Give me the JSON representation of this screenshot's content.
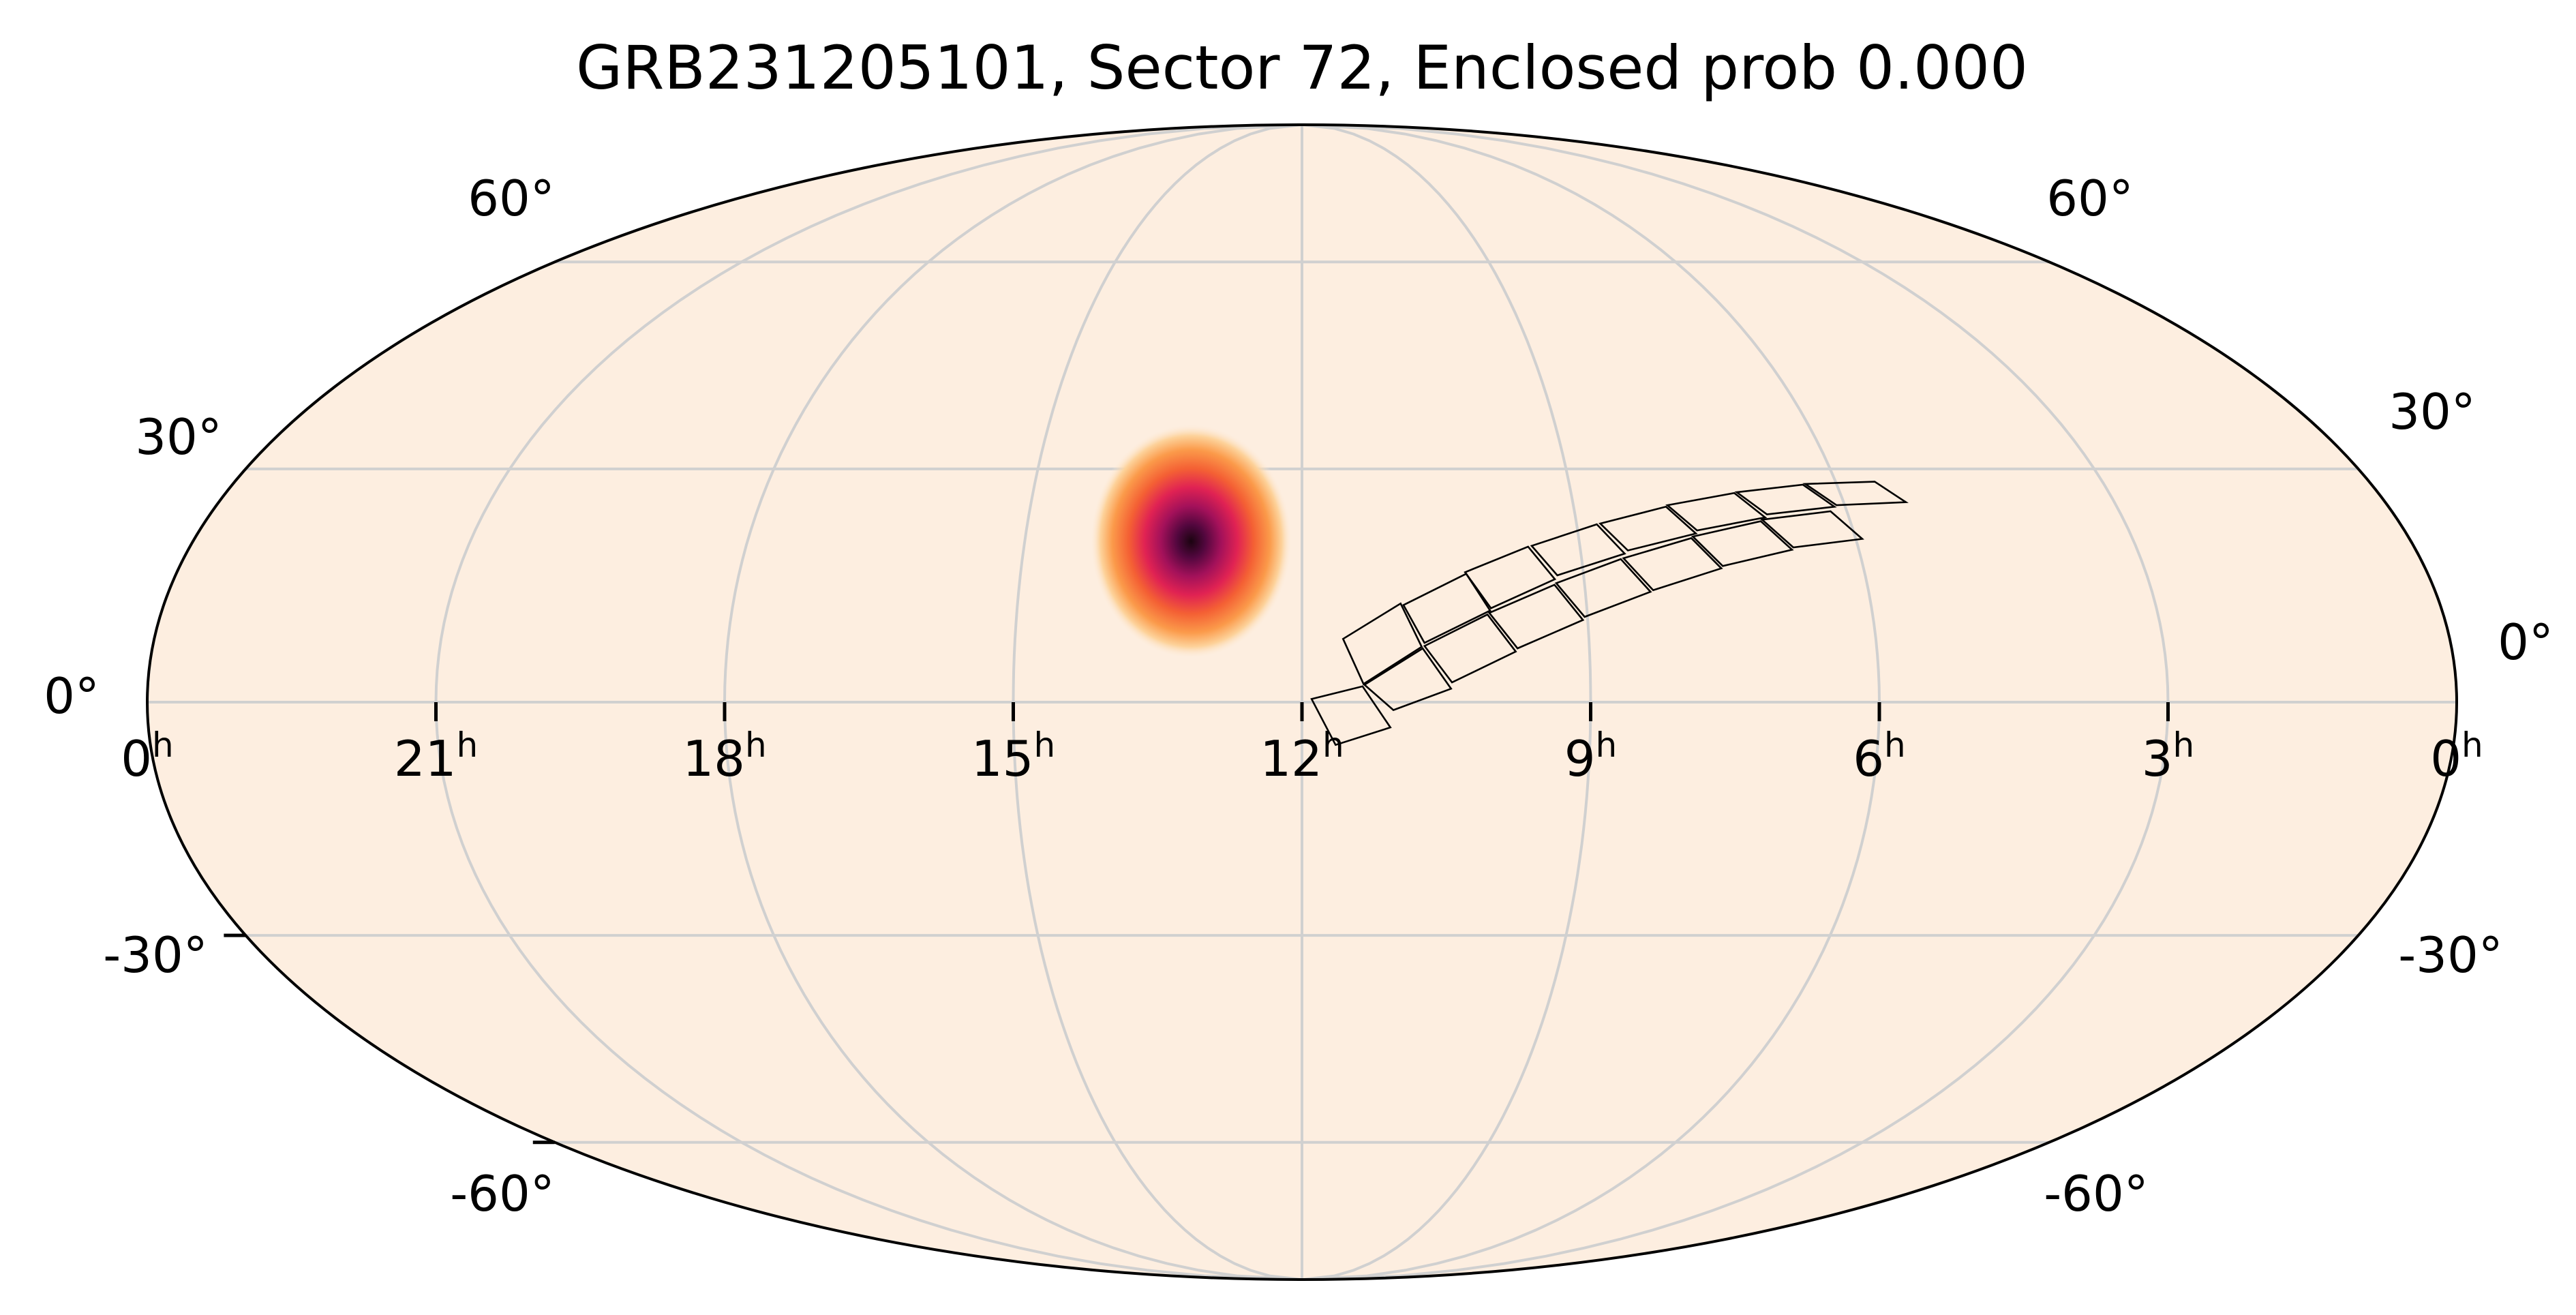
{
  "title": "GRB231205101, Sector 72, Enclosed prob 0.000",
  "colors": {
    "background": "#fdeee0",
    "grid": "#d0d0d0",
    "outline": "#000000",
    "probability_colormap": [
      "#fdeee0",
      "#fdd29a",
      "#fb9a4a",
      "#f46034",
      "#e02253",
      "#a3115a",
      "#52073e",
      "#1b0410"
    ]
  },
  "map": {
    "projection": "mollweide",
    "ra_direction": "decreasing-left-to-right",
    "grid": true,
    "ra_tick_labels": [
      {
        "value": "0",
        "unit": "h"
      },
      {
        "value": "21",
        "unit": "h"
      },
      {
        "value": "18",
        "unit": "h"
      },
      {
        "value": "15",
        "unit": "h"
      },
      {
        "value": "12",
        "unit": "h"
      },
      {
        "value": "9",
        "unit": "h"
      },
      {
        "value": "6",
        "unit": "h"
      },
      {
        "value": "3",
        "unit": "h"
      },
      {
        "value": "0",
        "unit": "h"
      }
    ],
    "dec_tick_labels_left": [
      "60°",
      "30°",
      "0°",
      "-30°",
      "-60°"
    ],
    "dec_tick_labels_right": [
      "60°",
      "30°",
      "0°",
      "-30°",
      "-60°"
    ]
  },
  "probability_blob": {
    "ra_hours": 13.2,
    "dec_deg": 20.5,
    "sigma_deg": 3.2
  },
  "sector_footprint": {
    "ccd_row_upper": [
      [
        [
          11.57,
          8.0
        ],
        [
          10.96,
          12.5
        ],
        [
          10.75,
          7.0
        ],
        [
          11.36,
          2.3
        ]
      ],
      [
        [
          10.93,
          12.3
        ],
        [
          10.25,
          16.3
        ],
        [
          10.02,
          11.6
        ],
        [
          10.72,
          7.5
        ]
      ],
      [
        [
          10.26,
          16.5
        ],
        [
          9.56,
          19.8
        ],
        [
          9.31,
          15.6
        ],
        [
          10.01,
          11.9
        ]
      ],
      [
        [
          9.52,
          19.9
        ],
        [
          8.78,
          22.7
        ],
        [
          8.53,
          18.9
        ],
        [
          9.28,
          16.1
        ]
      ],
      [
        [
          8.74,
          22.8
        ],
        [
          7.98,
          25.0
        ],
        [
          7.72,
          21.5
        ],
        [
          8.49,
          19.3
        ]
      ],
      [
        [
          7.96,
          25.2
        ],
        [
          7.18,
          26.8
        ],
        [
          6.92,
          23.6
        ],
        [
          7.7,
          21.9
        ]
      ],
      [
        [
          7.15,
          26.9
        ],
        [
          6.38,
          27.9
        ],
        [
          6.12,
          25.0
        ],
        [
          6.89,
          24.0
        ]
      ],
      [
        [
          6.35,
          28.0
        ],
        [
          5.56,
          28.3
        ],
        [
          5.31,
          25.6
        ],
        [
          6.09,
          25.2
        ]
      ]
    ],
    "ccd_row_lower": [
      [
        [
          11.9,
          0.4
        ],
        [
          11.37,
          2.0
        ],
        [
          11.08,
          -3.2
        ],
        [
          11.65,
          -5.4
        ]
      ],
      [
        [
          11.35,
          2.2
        ],
        [
          10.74,
          6.8
        ],
        [
          10.45,
          1.7
        ],
        [
          11.05,
          -1.0
        ]
      ],
      [
        [
          10.72,
          7.1
        ],
        [
          10.05,
          11.1
        ],
        [
          9.77,
          6.4
        ],
        [
          10.44,
          2.5
        ]
      ],
      [
        [
          10.03,
          11.3
        ],
        [
          9.32,
          14.9
        ],
        [
          9.05,
          10.4
        ],
        [
          9.75,
          6.8
        ]
      ],
      [
        [
          9.3,
          15.1
        ],
        [
          8.58,
          18.2
        ],
        [
          8.31,
          14.0
        ],
        [
          9.03,
          10.8
        ]
      ],
      [
        [
          8.55,
          18.3
        ],
        [
          7.78,
          20.9
        ],
        [
          7.52,
          17.0
        ],
        [
          8.28,
          14.2
        ]
      ],
      [
        [
          7.76,
          21.1
        ],
        [
          6.98,
          23.1
        ],
        [
          6.72,
          19.4
        ],
        [
          7.5,
          17.3
        ]
      ],
      [
        [
          6.96,
          23.3
        ],
        [
          6.18,
          24.4
        ],
        [
          5.93,
          20.8
        ],
        [
          6.7,
          19.7
        ]
      ]
    ]
  }
}
